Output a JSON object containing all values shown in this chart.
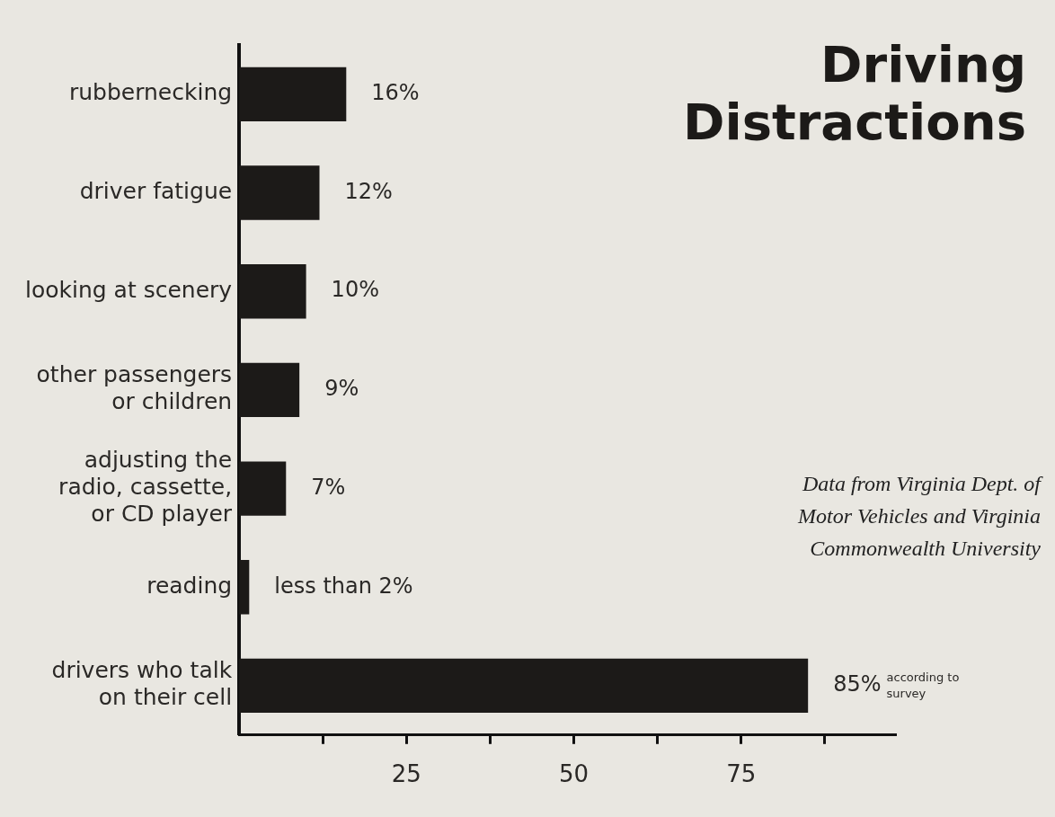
{
  "chart_data": {
    "type": "bar",
    "orientation": "horizontal",
    "title": "Driving Distractions",
    "categories": [
      "rubbernecking",
      "driver fatigue",
      "looking at scenery",
      "other passengers or children",
      "adjusting the radio, cassette, or CD player",
      "reading",
      "drivers who talk on their cell"
    ],
    "values": [
      16,
      12,
      10,
      9,
      7,
      1.5,
      85
    ],
    "value_labels": [
      "16%",
      "12%",
      "10%",
      "9%",
      "7%",
      "less than 2%",
      "85%"
    ],
    "color": "#1c1a18",
    "xlim": [
      0,
      98
    ],
    "xticks": [
      {
        "value": 12.5,
        "label": null
      },
      25,
      {
        "value": 37.5,
        "label": null
      },
      50,
      {
        "value": 62.5,
        "label": null
      },
      75,
      {
        "value": 87.5,
        "label": null
      }
    ],
    "grid": false,
    "legend": false,
    "tick_labels": "xy",
    "annotations": [
      "according to survey",
      "Data from Virginia Dept. of Motor Vehicles and Virginia Commonwealth University"
    ]
  }
}
